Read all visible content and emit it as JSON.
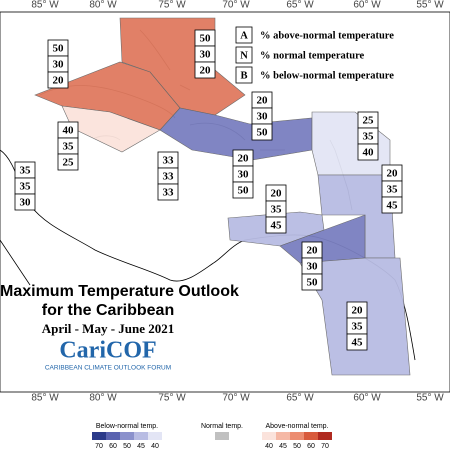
{
  "longitudes": [
    "85° W",
    "80° W",
    "75° W",
    "70° W",
    "65° W",
    "60° W",
    "55° W"
  ],
  "legend": [
    {
      "key": "A",
      "text": "% above-normal temperature"
    },
    {
      "key": "N",
      "text": "% normal temperature"
    },
    {
      "key": "B",
      "text": "% below-normal temperature"
    }
  ],
  "regions": [
    {
      "values": [
        50,
        30,
        20
      ],
      "color": "#e07a5f"
    },
    {
      "values": [
        50,
        30,
        20
      ],
      "color": "#e07a5f"
    },
    {
      "values": [
        40,
        35,
        25
      ],
      "color": "#fbe3dc"
    },
    {
      "values": [
        35,
        35,
        30
      ],
      "color": "#ffffff"
    },
    {
      "values": [
        20,
        30,
        50
      ],
      "color": "#7a7fc0"
    },
    {
      "values": [
        33,
        33,
        33
      ],
      "color": "#ffffff"
    },
    {
      "values": [
        20,
        30,
        50
      ],
      "color": "#7a7fc0"
    },
    {
      "values": [
        25,
        35,
        40
      ],
      "color": "#e3e5f5"
    },
    {
      "values": [
        20,
        35,
        45
      ],
      "color": "#b8bce3"
    },
    {
      "values": [
        20,
        35,
        45
      ],
      "color": "#b8bce3"
    },
    {
      "values": [
        20,
        30,
        50
      ],
      "color": "#7a7fc0"
    },
    {
      "values": [
        20,
        35,
        45
      ],
      "color": "#b8bce3"
    }
  ],
  "title": "Maximum Temperature Outlook",
  "subtitle": "for the Caribbean",
  "period": "April - May - June 2021",
  "logo": "CariCOF",
  "logo_caption": "CARIBBEAN CLIMATE OUTLOOK FORUM",
  "colorbar": {
    "below": {
      "label": "Below-normal temp.",
      "ticks": [
        70,
        60,
        50,
        45,
        40
      ],
      "colors": [
        "#2b3a8a",
        "#5a63b0",
        "#8b91cc",
        "#b8bce3",
        "#e3e5f5"
      ]
    },
    "normal": {
      "label": "Normal temp.",
      "color": "#c0c0c0"
    },
    "above": {
      "label": "Above-normal temp.",
      "ticks": [
        40,
        45,
        50,
        60,
        70
      ],
      "colors": [
        "#fbe3dc",
        "#f5b8a5",
        "#ec8c70",
        "#d85a3c",
        "#b02a20"
      ]
    }
  }
}
